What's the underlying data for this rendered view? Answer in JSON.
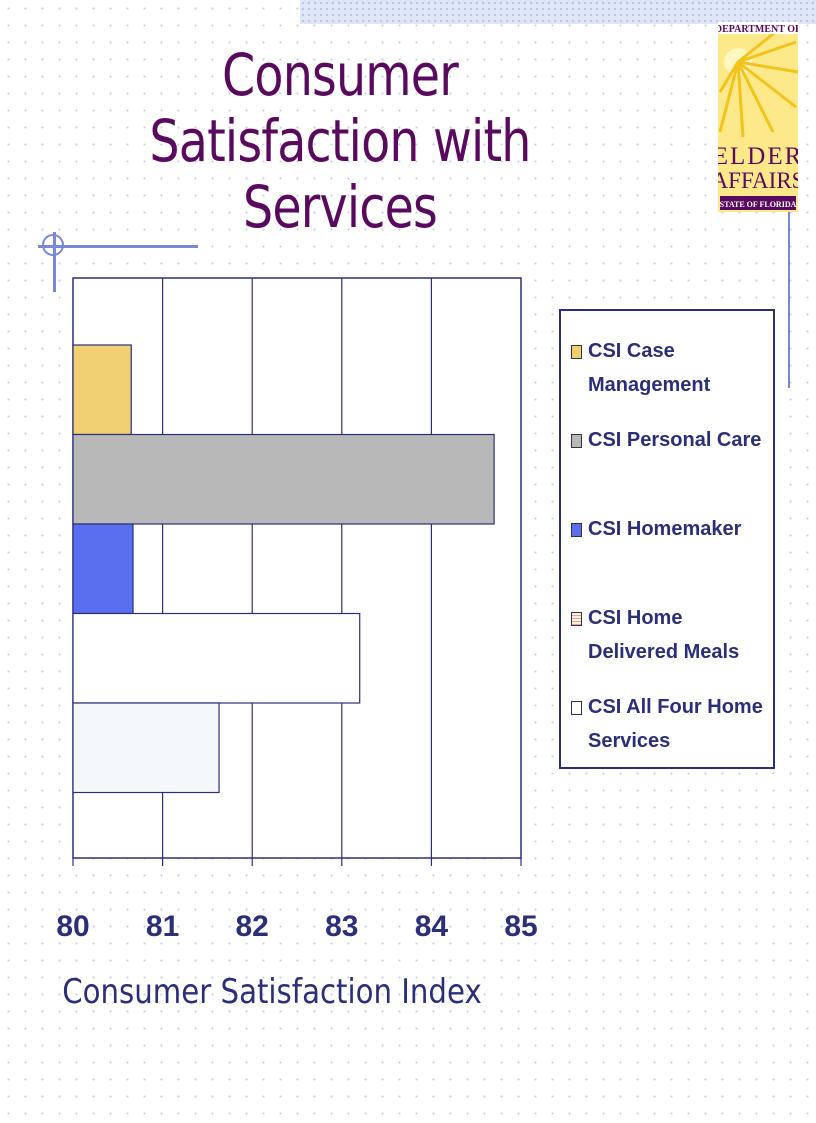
{
  "title_line1": "Consumer Satisfaction with",
  "title_line2": "Services",
  "logo": {
    "top_text": "DEPARTMENT OF",
    "line1": "ELDER",
    "line2": "AFFAIRS",
    "bottom_text": "STATE OF FLORIDA"
  },
  "colors": {
    "title": "#5a0a5e",
    "axis_text": "#2b2f7a",
    "case_management": "#f0d070",
    "personal_care": "#b8b8b8",
    "homemaker": "#5a6ef0",
    "home_delivered_meals": "#ffffff",
    "all_four": "#f4f8fa"
  },
  "chart_data": {
    "type": "bar",
    "orientation": "horizontal",
    "xlabel": "Consumer Satisfaction Index",
    "xlim": [
      80,
      85
    ],
    "xticks": [
      "80",
      "81",
      "82",
      "83",
      "84",
      "85"
    ],
    "grid": true,
    "legend_position": "right",
    "series": [
      {
        "name": "CSI Case Management",
        "value": 80.65
      },
      {
        "name": "CSI Personal Care",
        "value": 84.7
      },
      {
        "name": "CSI Homemaker",
        "value": 80.67
      },
      {
        "name": "CSI Home Delivered Meals",
        "value": 83.2
      },
      {
        "name": "CSI All Four Home Services",
        "value": 81.63
      }
    ]
  }
}
